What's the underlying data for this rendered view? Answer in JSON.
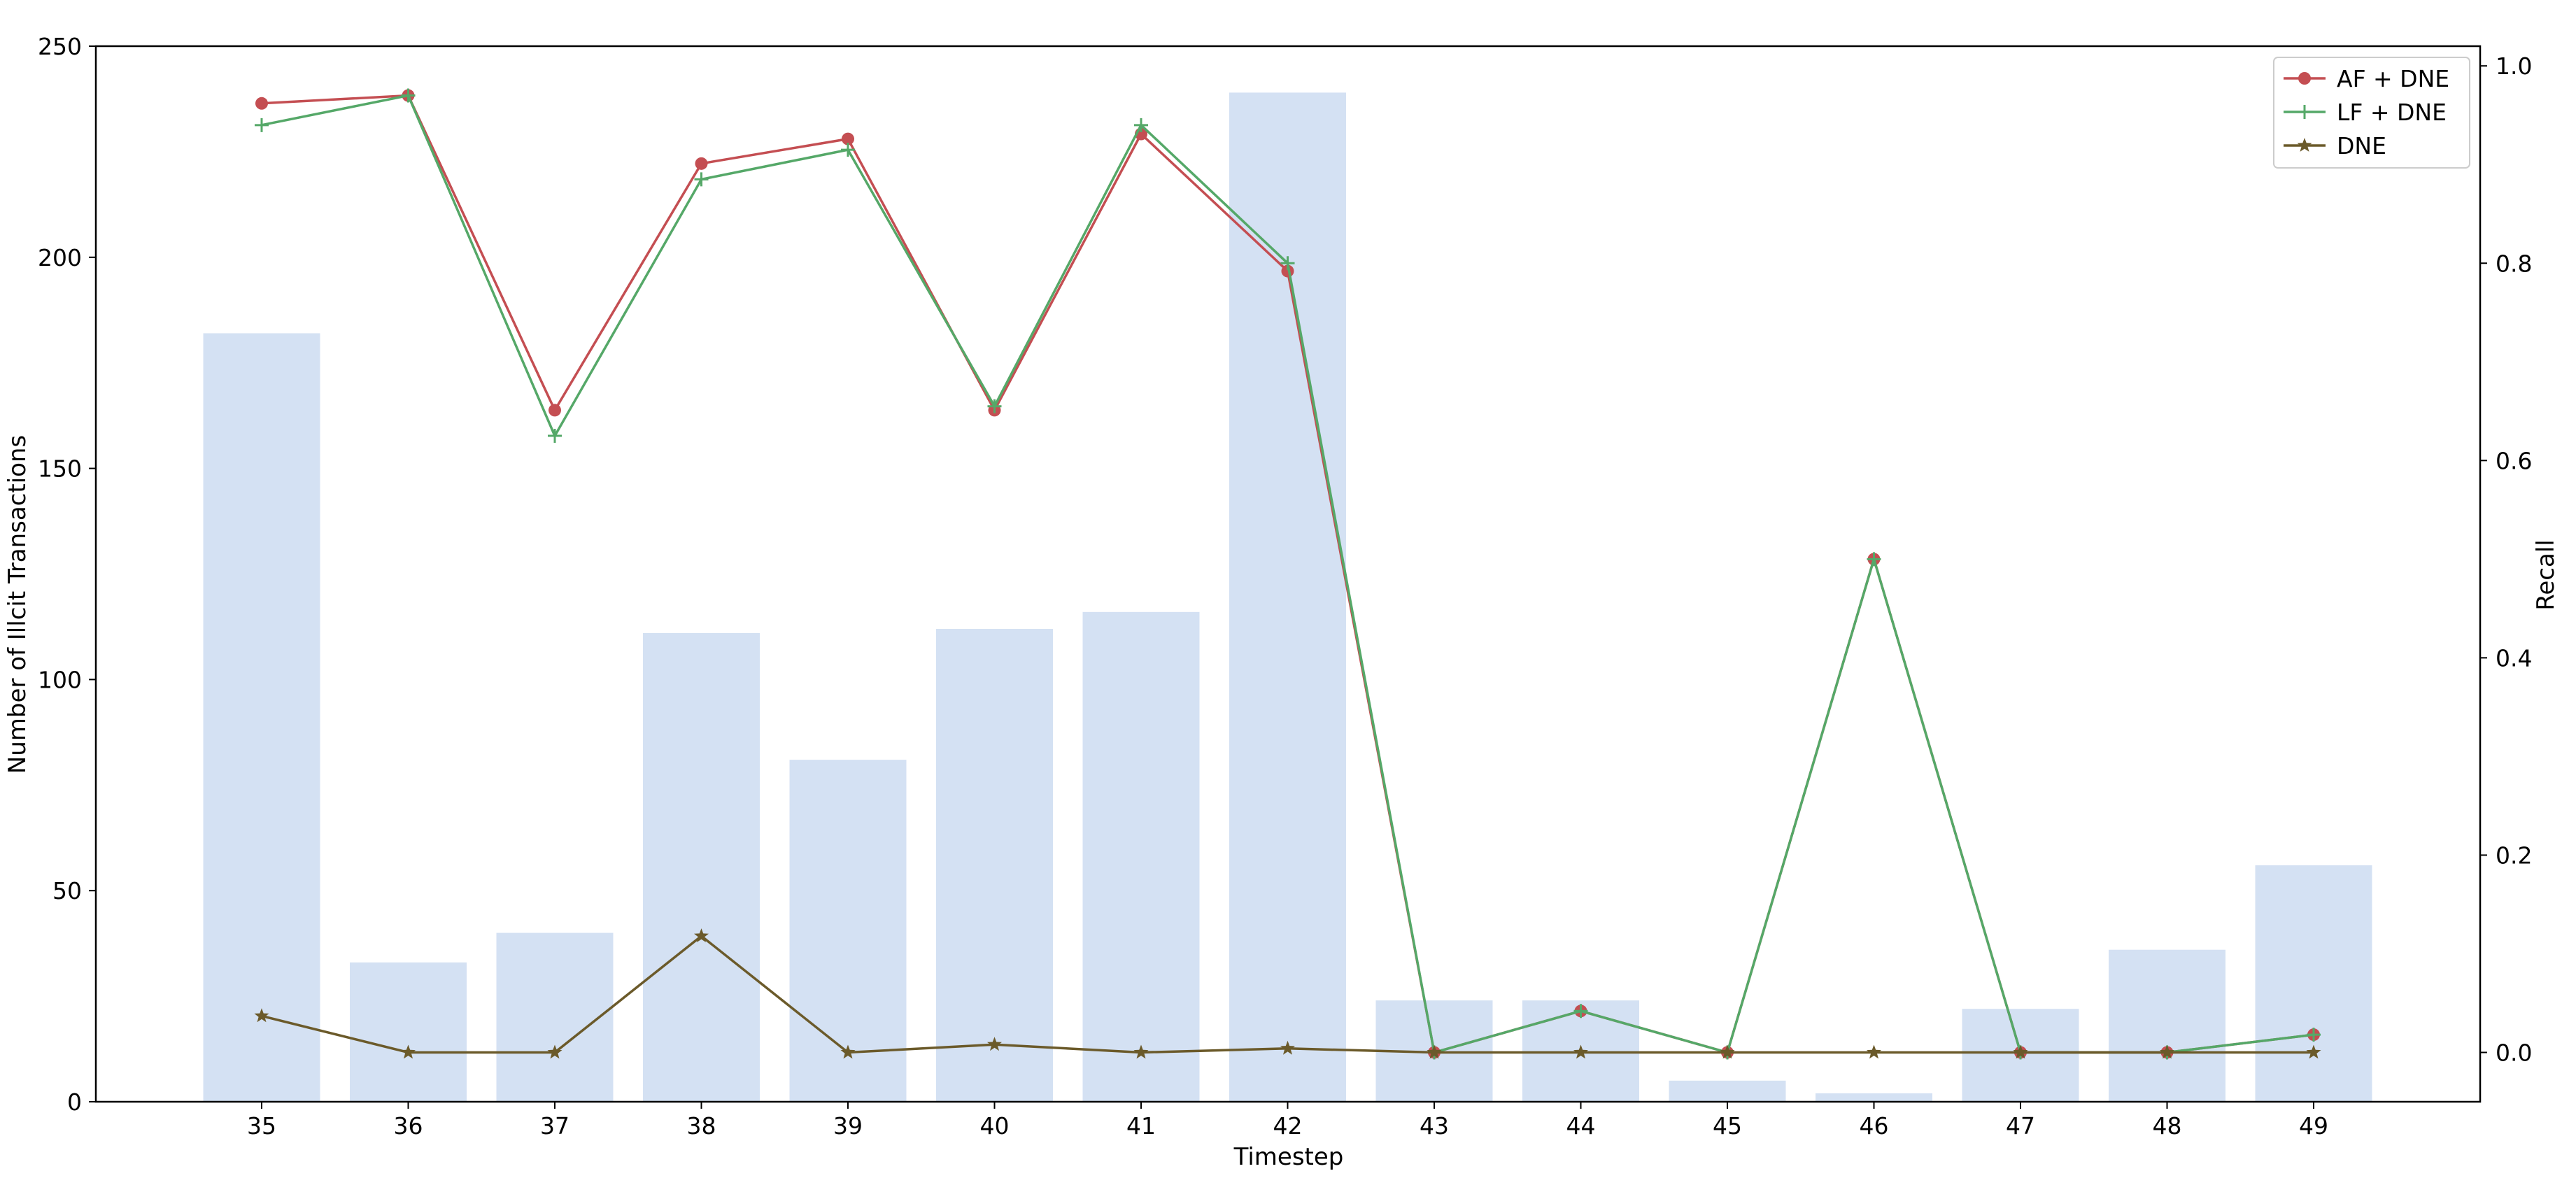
{
  "chart_data": {
    "type": "bar+line",
    "categories": [
      "35",
      "36",
      "37",
      "38",
      "39",
      "40",
      "41",
      "42",
      "43",
      "44",
      "45",
      "46",
      "47",
      "48",
      "49"
    ],
    "xlabel": "Timestep",
    "ylabel_left": "Number of Illcit Transactions",
    "ylabel_right": "Recall",
    "ylim_left": [
      0,
      250
    ],
    "ylim_right": [
      -0.05,
      1.02
    ],
    "yticks_left": [
      0,
      50,
      100,
      150,
      200,
      250
    ],
    "yticks_right": [
      0.0,
      0.2,
      0.4,
      0.6,
      0.8,
      1.0
    ],
    "bars": {
      "values": [
        182,
        33,
        40,
        111,
        81,
        112,
        116,
        239,
        24,
        24,
        5,
        2,
        22,
        36,
        56
      ],
      "color": "#c9d9f0"
    },
    "legend_position": "top-right",
    "series": [
      {
        "name": "AF + DNE",
        "color": "#c44e52",
        "marker": "circle",
        "values": [
          0.962,
          0.97,
          0.651,
          0.901,
          0.926,
          0.651,
          0.931,
          0.792,
          0.0,
          0.042,
          0.0,
          0.5,
          0.0,
          0.0,
          0.018
        ]
      },
      {
        "name": "LF + DNE",
        "color": "#55a868",
        "marker": "plus",
        "values": [
          0.94,
          0.97,
          0.625,
          0.885,
          0.915,
          0.655,
          0.94,
          0.8,
          0.0,
          0.042,
          0.0,
          0.5,
          0.0,
          0.0,
          0.018
        ]
      },
      {
        "name": "DNE",
        "color": "#6b5a2a",
        "marker": "star",
        "values": [
          0.037,
          0.0,
          0.0,
          0.118,
          0.0,
          0.008,
          0.0,
          0.004,
          0.0,
          0.0,
          0.0,
          0.0,
          0.0,
          0.0,
          0.0
        ]
      }
    ]
  }
}
